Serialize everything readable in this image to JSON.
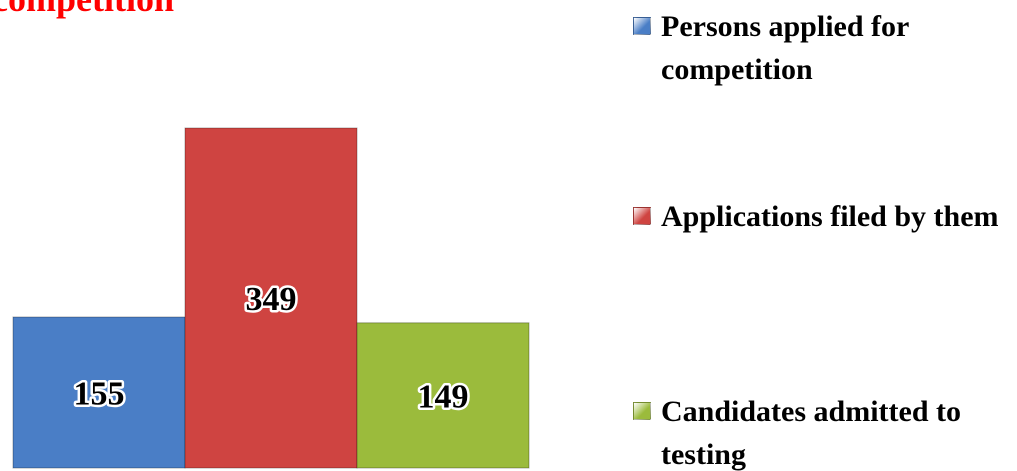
{
  "chart_data": {
    "type": "bar",
    "title": "competition",
    "series": [
      {
        "name": "Persons applied for competition",
        "color": "#4a7ec6",
        "values": [
          155
        ]
      },
      {
        "name": "Applications filed by them",
        "color": "#cf4441",
        "values": [
          349
        ]
      },
      {
        "name": "Candidates admitted to testing",
        "color": "#9bbb3c",
        "values": [
          149
        ]
      }
    ]
  }
}
